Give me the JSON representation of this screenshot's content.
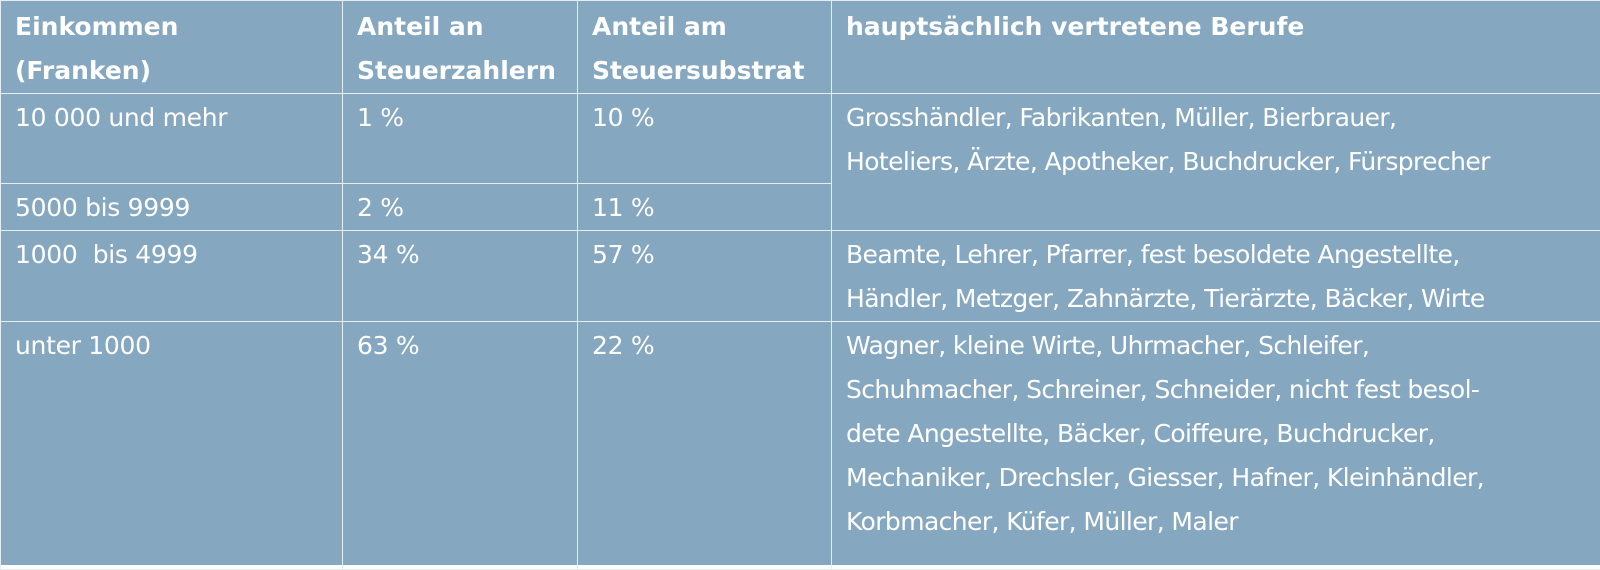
{
  "table": {
    "headers": {
      "income": [
        "Einkommen",
        "(Franken)"
      ],
      "share_taxpayers": [
        "Anteil an",
        "Steuerzahlern"
      ],
      "share_substrate": [
        "Anteil am",
        "Steuersubstrat"
      ],
      "occupations": "hauptsächlich vertretene Berufe"
    },
    "rows": [
      {
        "income": "10 000 und mehr",
        "share_taxpayers": "1 %",
        "share_substrate": "10 %"
      },
      {
        "income": "5000 bis 9999",
        "share_taxpayers": "2 %",
        "share_substrate": "11 %"
      },
      {
        "income": "1000  bis 4999",
        "share_taxpayers": "34 %",
        "share_substrate": "57 %"
      },
      {
        "income": "unter 1000",
        "share_taxpayers": "63 %",
        "share_substrate": "22 %"
      }
    ],
    "occupations": {
      "top": [
        "Grosshändler, Fabrikanten, Müller, Bierbrauer,",
        "Hoteliers, Ärzte, Apotheker, Buchdrucker, Fürsprecher"
      ],
      "middle": [
        "Beamte, Lehrer, Pfarrer, fest besoldete Angestellte,",
        "Händler, Metzger, Zahnärzte, Tierärzte, Bäcker, Wirte"
      ],
      "bottom": [
        "Wagner, kleine Wirte, Uhrmacher, Schleifer,",
        "Schuhmacher, Schreiner, Schneider, nicht fest besol-",
        "dete Angestellte, Bäcker, Coiffeure, Buchdrucker,",
        "Mechaniker, Drechsler, Giesser, Hafner, Kleinhändler,",
        "Korbmacher, Küfer, Müller, Maler"
      ]
    }
  }
}
